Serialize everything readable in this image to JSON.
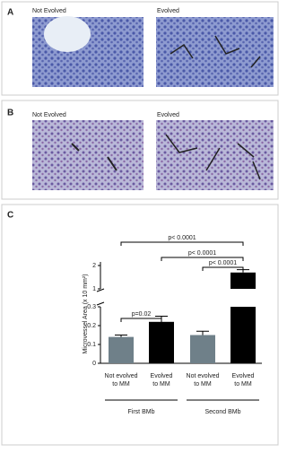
{
  "panels": [
    {
      "label": "A",
      "images": [
        "Not Evolved",
        "Evolved"
      ]
    },
    {
      "label": "B",
      "images": [
        "Not Evolved",
        "Evolved"
      ]
    }
  ],
  "chart_panel_label": "C",
  "chart_data": {
    "type": "bar",
    "y_label": "Microvessel Area (x 10 mm²)",
    "categories": [
      "Not evolved\nto MM",
      "Evolved\nto MM",
      "Not evolved\nto MM",
      "Evolved\nto MM"
    ],
    "groups": [
      "First BMb",
      "Second BMb"
    ],
    "values": [
      0.14,
      0.22,
      0.15,
      1.7
    ],
    "errors": [
      0.01,
      0.03,
      0.02,
      0.12
    ],
    "colors": [
      "#6f8089",
      "#000000",
      "#6f8089",
      "#000000"
    ],
    "ylim": [
      0,
      2
    ],
    "axis_break": [
      0.3,
      1
    ],
    "yticks": [
      0,
      0.1,
      0.2,
      0.3,
      1,
      2
    ],
    "annotations": [
      "p< 0.0001",
      "p< 0.0001",
      "p< 0.0001",
      "p=0.02"
    ]
  }
}
